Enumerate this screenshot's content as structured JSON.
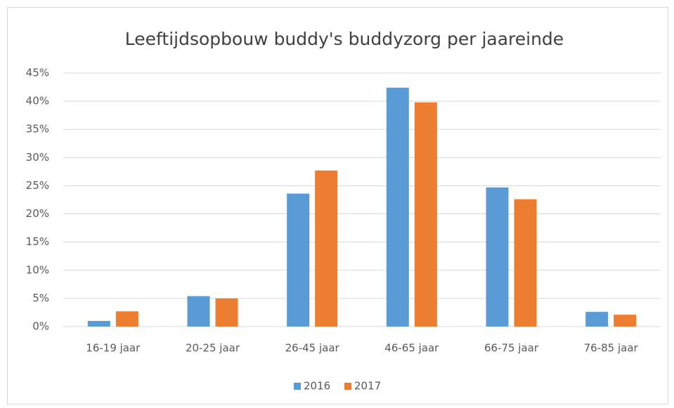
{
  "chart_data": {
    "type": "bar",
    "title": "Leeftijdsopbouw buddy's buddyzorg per jaareinde",
    "categories": [
      "16-19 jaar",
      "20-25 jaar",
      "26-45 jaar",
      "46-65 jaar",
      "66-75 jaar",
      "76-85 jaar"
    ],
    "series": [
      {
        "name": "2016",
        "color": "#5b9bd5",
        "values": [
          1.0,
          5.4,
          23.6,
          42.4,
          24.7,
          2.6
        ]
      },
      {
        "name": "2017",
        "color": "#ed7d31",
        "values": [
          2.7,
          5.0,
          27.7,
          39.8,
          22.6,
          2.1
        ]
      }
    ],
    "ylim": [
      0,
      45
    ],
    "yticks": [
      {
        "value": 0,
        "label": "0%"
      },
      {
        "value": 5,
        "label": "5%"
      },
      {
        "value": 10,
        "label": "10%"
      },
      {
        "value": 15,
        "label": "15%"
      },
      {
        "value": 20,
        "label": "20%"
      },
      {
        "value": 25,
        "label": "25%"
      },
      {
        "value": 30,
        "label": "30%"
      },
      {
        "value": 35,
        "label": "35%"
      },
      {
        "value": 40,
        "label": "40%"
      },
      {
        "value": 45,
        "label": "45%"
      }
    ],
    "grid": true,
    "legend": "bottom"
  }
}
